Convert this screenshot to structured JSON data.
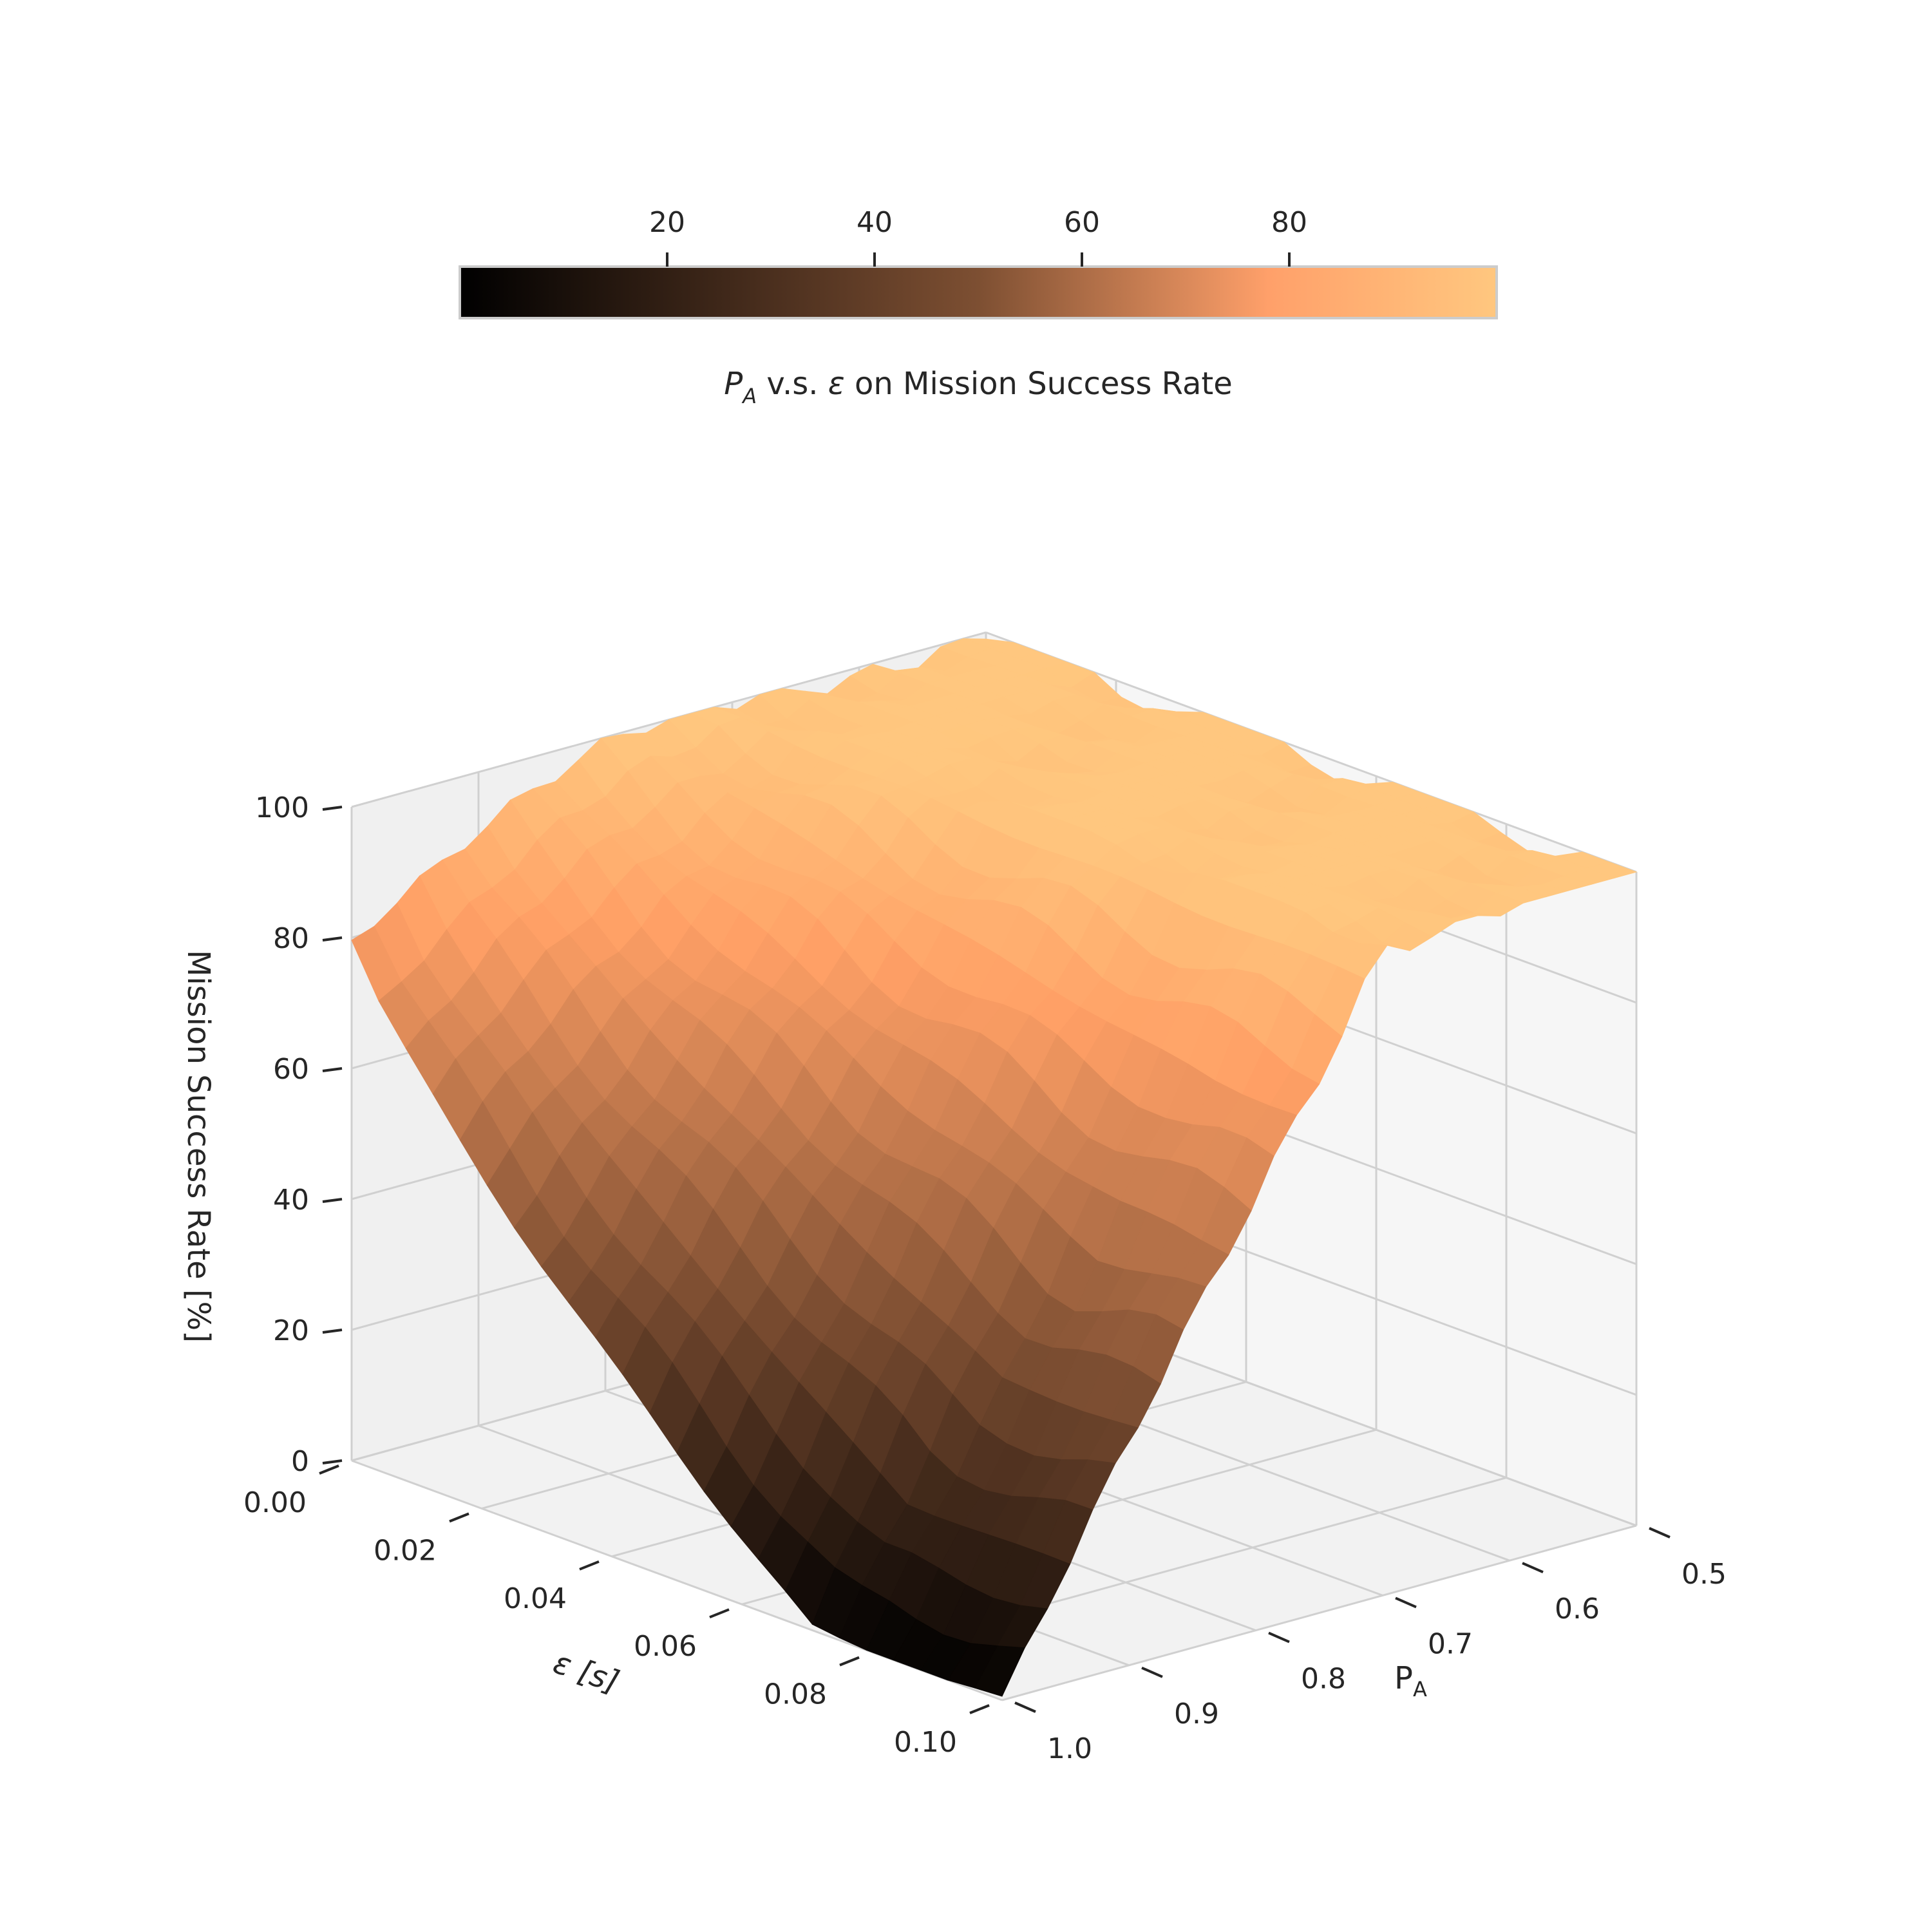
{
  "chart_data": {
    "type": "surface3d",
    "title": "P_A v.s. ε on Mission Success Rate",
    "title_parts": {
      "symbol": "P",
      "subscript": "A",
      "rest": " v.s. ",
      "epsilon": "ε",
      "tail": " on Mission Success Rate"
    },
    "xlabel": "ε [s]",
    "ylabel": "P",
    "ylabel_sub": "A",
    "zlabel": "Mission Success Rate [%]",
    "xlim": [
      0.0,
      0.1
    ],
    "ylim": [
      0.5,
      1.0
    ],
    "zlim": [
      0,
      100
    ],
    "x_ticks": [
      "0.00",
      "0.02",
      "0.04",
      "0.06",
      "0.08",
      "0.10"
    ],
    "y_ticks": [
      "0.5",
      "0.6",
      "0.7",
      "0.8",
      "0.9",
      "1.0"
    ],
    "z_ticks": [
      "0",
      "20",
      "40",
      "60",
      "80",
      "100"
    ],
    "colormap": "copper",
    "colorbar": {
      "ticks": [
        "20",
        "40",
        "60",
        "80"
      ],
      "range": [
        0,
        100
      ],
      "location": "top"
    },
    "model": "success ≈ 100 for P_A ≤ 0.70; for P_A > 0.70 success drops steeply with ε, reaching ~0 near ε = 0.10",
    "grid": true,
    "colors": {
      "low": "#000000",
      "high": "#ffc77f",
      "grid": "#d0d0d0",
      "pane_left": "#f0f0f0",
      "pane_right": "#f6f6f6"
    }
  }
}
